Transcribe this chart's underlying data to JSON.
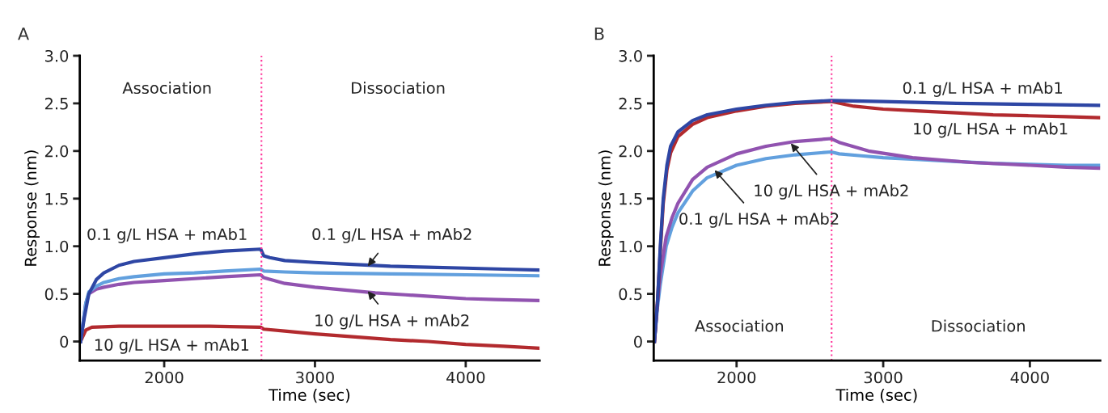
{
  "chart_data": [
    {
      "type": "line",
      "title": "A",
      "xlabel": "Time (sec)",
      "ylabel": "Response (nm)",
      "xlim": [
        1440,
        4490
      ],
      "xticks": [
        2000,
        3000,
        4000
      ],
      "ylim": [
        -0.2,
        3.0
      ],
      "yticks": [
        {
          "value": 0,
          "label": "0"
        },
        {
          "value": 0.5,
          "label": "0.5"
        },
        {
          "value": 1.0,
          "label": "1.0"
        },
        {
          "value": 1.5,
          "label": "1.5"
        },
        {
          "value": 2.0,
          "label": "2.0"
        },
        {
          "value": 2.5,
          "label": "2.5"
        },
        {
          "value": 3.0,
          "label": "3.0"
        }
      ],
      "grid": false,
      "legend": false,
      "marker": "none",
      "line_style": "solid",
      "ref_lines": [
        {
          "axis": "x",
          "value": 2645,
          "color": "#ff3399",
          "line_style": "dotted"
        }
      ],
      "series": [
        {
          "color": "#b22a2e",
          "x": [
            1445,
            1480,
            1520,
            1700,
            2000,
            2300,
            2640,
            2660,
            2800,
            3000,
            3250,
            3500,
            3750,
            4000,
            4250,
            4480
          ],
          "values": [
            0,
            0.12,
            0.15,
            0.16,
            0.16,
            0.16,
            0.15,
            0.13,
            0.11,
            0.08,
            0.05,
            0.02,
            0.0,
            -0.03,
            -0.05,
            -0.07
          ]
        },
        {
          "color": "#9153b0",
          "x": [
            1445,
            1480,
            1500,
            1550,
            1600,
            1700,
            1800,
            2000,
            2200,
            2400,
            2640,
            2660,
            2800,
            3000,
            3200,
            3400,
            3600,
            3800,
            4000,
            4200,
            4480
          ],
          "values": [
            0,
            0.4,
            0.5,
            0.55,
            0.57,
            0.6,
            0.62,
            0.64,
            0.66,
            0.68,
            0.7,
            0.67,
            0.61,
            0.57,
            0.54,
            0.51,
            0.49,
            0.47,
            0.45,
            0.44,
            0.43
          ]
        },
        {
          "color": "#62a0de",
          "x": [
            1445,
            1480,
            1500,
            1550,
            1600,
            1700,
            1800,
            2000,
            2200,
            2400,
            2640,
            2660,
            2800,
            3000,
            3500,
            4000,
            4480
          ],
          "values": [
            0,
            0.4,
            0.52,
            0.58,
            0.62,
            0.66,
            0.68,
            0.71,
            0.72,
            0.74,
            0.76,
            0.74,
            0.73,
            0.72,
            0.71,
            0.7,
            0.69
          ]
        },
        {
          "color": "#2e46a4",
          "x": [
            1445,
            1470,
            1500,
            1550,
            1600,
            1700,
            1800,
            2000,
            2200,
            2400,
            2640,
            2660,
            2700,
            2800,
            3000,
            3250,
            3500,
            3750,
            4000,
            4250,
            4480
          ],
          "values": [
            0,
            0.25,
            0.5,
            0.65,
            0.72,
            0.8,
            0.84,
            0.88,
            0.92,
            0.95,
            0.97,
            0.9,
            0.88,
            0.85,
            0.83,
            0.81,
            0.79,
            0.78,
            0.77,
            0.76,
            0.75
          ]
        }
      ],
      "annotations": [
        "Association",
        "Dissociation",
        "0.1 g/L HSA + mAb1",
        {
          "text": "0.1 g/L HSA + mAb2",
          "x": 3350,
          "y": 0.79
        },
        {
          "text": "10 g/L HSA + mAb2",
          "x": 3350,
          "y": 0.53
        },
        "10 g/L HSA + mAb1"
      ]
    },
    {
      "type": "line",
      "title": "B",
      "xlabel": "Time (sec)",
      "ylabel": "Response (nm)",
      "xlim": [
        1435,
        4480
      ],
      "xticks": [
        2000,
        3000,
        4000
      ],
      "ylim": [
        -0.2,
        3.0
      ],
      "yticks": [
        {
          "value": 0,
          "label": "0"
        },
        {
          "value": 0.5,
          "label": "0.5"
        },
        {
          "value": 1.0,
          "label": "1.0"
        },
        {
          "value": 1.5,
          "label": "1.5"
        },
        {
          "value": 2.0,
          "label": "2.0"
        },
        {
          "value": 2.5,
          "label": "2.5"
        },
        {
          "value": 3.0,
          "label": "3.0"
        }
      ],
      "grid": false,
      "legend": false,
      "marker": "none",
      "line_style": "solid",
      "ref_lines": [
        {
          "axis": "x",
          "value": 2648,
          "color": "#ff3399",
          "line_style": "dotted"
        }
      ],
      "series": [
        {
          "color": "#62a0de",
          "x": [
            1440,
            1460,
            1480,
            1520,
            1560,
            1600,
            1700,
            1800,
            2000,
            2200,
            2400,
            2645,
            2700,
            2850,
            3000,
            3250,
            3500,
            3750,
            4000,
            4250,
            4470
          ],
          "values": [
            0,
            0.35,
            0.6,
            1.0,
            1.2,
            1.35,
            1.58,
            1.72,
            1.85,
            1.92,
            1.96,
            1.99,
            1.97,
            1.95,
            1.93,
            1.91,
            1.89,
            1.87,
            1.86,
            1.85,
            1.85
          ]
        },
        {
          "color": "#9153b0",
          "x": [
            1440,
            1460,
            1480,
            1520,
            1560,
            1600,
            1700,
            1800,
            2000,
            2200,
            2400,
            2645,
            2700,
            2900,
            3200,
            3600,
            4000,
            4250,
            4470
          ],
          "values": [
            0,
            0.4,
            0.7,
            1.1,
            1.3,
            1.45,
            1.7,
            1.83,
            1.97,
            2.05,
            2.1,
            2.13,
            2.09,
            2.0,
            1.93,
            1.88,
            1.85,
            1.83,
            1.82
          ]
        },
        {
          "color": "#b22a2e",
          "x": [
            1440,
            1460,
            1480,
            1500,
            1525,
            1550,
            1600,
            1700,
            1800,
            2000,
            2200,
            2400,
            2645,
            2800,
            3000,
            3250,
            3500,
            3750,
            4000,
            4250,
            4470
          ],
          "values": [
            0,
            0.4,
            0.95,
            1.45,
            1.8,
            1.98,
            2.15,
            2.28,
            2.35,
            2.42,
            2.47,
            2.5,
            2.52,
            2.47,
            2.44,
            2.42,
            2.4,
            2.38,
            2.37,
            2.36,
            2.35
          ]
        },
        {
          "color": "#2e46a4",
          "x": [
            1440,
            1460,
            1480,
            1500,
            1525,
            1550,
            1600,
            1700,
            1800,
            2000,
            2200,
            2400,
            2645,
            3000,
            3500,
            4000,
            4470
          ],
          "values": [
            0,
            0.4,
            1.0,
            1.5,
            1.85,
            2.05,
            2.2,
            2.32,
            2.38,
            2.44,
            2.48,
            2.51,
            2.53,
            2.52,
            2.5,
            2.49,
            2.48
          ]
        }
      ],
      "annotations": [
        "0.1 g/L HSA + mAb1",
        "10 g/L HSA + mAb1",
        {
          "text": "10 g/L HSA + mAb2",
          "x": 2370,
          "y": 2.08
        },
        {
          "text": "0.1 g/L HSA + mAb2",
          "x": 1850,
          "y": 1.8
        },
        "Association",
        "Dissociation"
      ]
    }
  ]
}
